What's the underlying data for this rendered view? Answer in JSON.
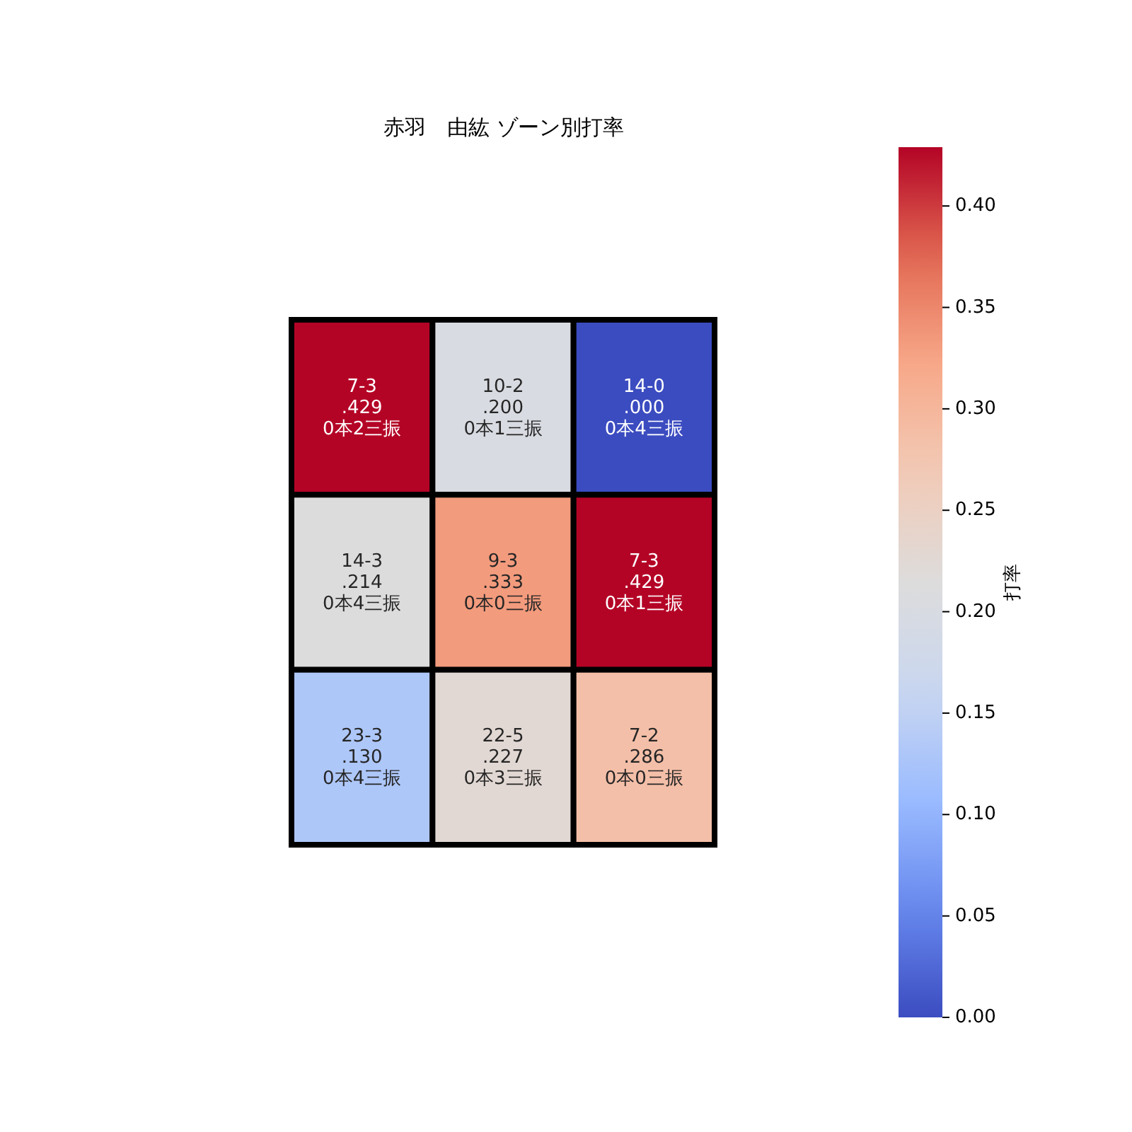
{
  "chart_data": {
    "type": "heatmap",
    "title": "赤羽　由紘 ゾーン別打率",
    "clabel": "打率",
    "categories": [
      null,
      null,
      null
    ],
    "y_categories": [
      null,
      null,
      null
    ],
    "cells": [
      [
        0.429,
        0.2,
        0.0
      ],
      [
        0.214,
        0.333,
        0.429
      ],
      [
        0.13,
        0.227,
        0.286
      ]
    ],
    "cell_labels": [
      [
        "7-3\n.429\n0本2三振",
        "10-2\n.200\n0本1三振",
        "14-0\n.000\n0本4三振"
      ],
      [
        "14-3\n.214\n0本4三振",
        "9-3\n.333\n0本0三振",
        "7-3\n.429\n0本1三振"
      ],
      [
        "23-3\n.130\n0本4三振",
        "22-5\n.227\n0本3三振",
        "7-2\n.286\n0本0三振"
      ]
    ],
    "clim": [
      0,
      0.429
    ],
    "cticks": [
      {
        "value": 0,
        "label": "0.00"
      },
      {
        "value": 0.05,
        "label": "0.05"
      },
      {
        "value": 0.1,
        "label": "0.10"
      },
      {
        "value": 0.15,
        "label": "0.15"
      },
      {
        "value": 0.2,
        "label": "0.20"
      },
      {
        "value": 0.25,
        "label": "0.25"
      },
      {
        "value": 0.3,
        "label": "0.30"
      },
      {
        "value": 0.35,
        "label": "0.35"
      },
      {
        "value": 0.4,
        "label": "0.40"
      }
    ]
  }
}
